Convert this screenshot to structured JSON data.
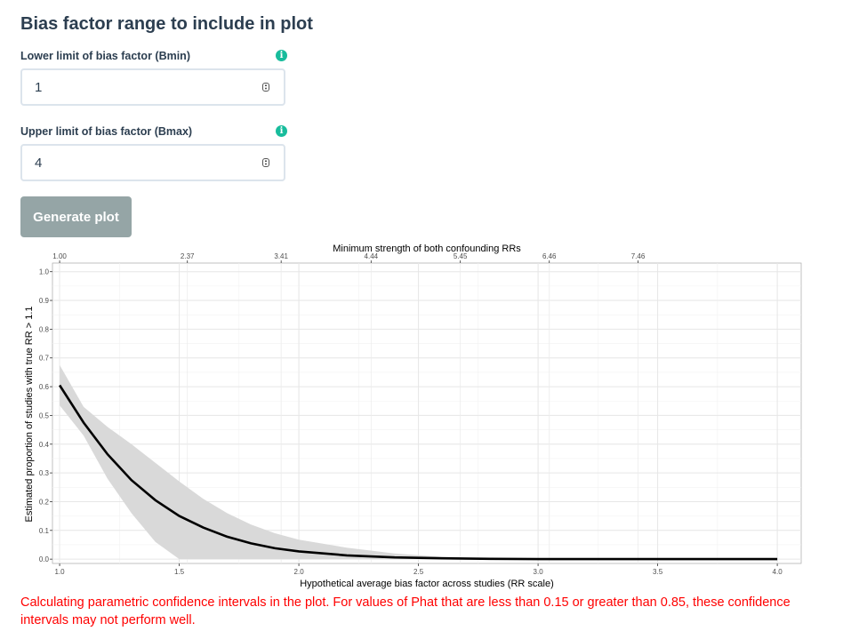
{
  "header": {
    "title": "Bias factor range to include in plot"
  },
  "bmin": {
    "label": "Lower limit of bias factor (Bmin)",
    "value": "1",
    "info_icon": "info-icon"
  },
  "bmax": {
    "label": "Upper limit of bias factor (Bmax)",
    "value": "4",
    "info_icon": "info-icon"
  },
  "generate_button": {
    "label": "Generate plot"
  },
  "colors": {
    "accent": "#18bc9c",
    "button": "#95a5a6",
    "warning": "#ff0000",
    "band": "#d9d9d9"
  },
  "warning_text": "Calculating parametric confidence intervals in the plot. For values of Phat that are less than 0.15 or greater than 0.85, these confidence intervals may not perform well.",
  "chart_data": {
    "type": "line",
    "title": "",
    "xlabel": "Hypothetical average bias factor across studies (RR scale)",
    "ylabel": "Estimated proportion of studies with true RR > 1.1",
    "top_axis_label": "Minimum strength of both confounding RRs",
    "xlim": [
      0.97,
      4.1
    ],
    "ylim": [
      -0.015,
      1.03
    ],
    "x_ticks": [
      1.0,
      1.5,
      2.0,
      2.5,
      3.0,
      3.5,
      4.0
    ],
    "x_tick_labels": [
      "1.0",
      "1.5",
      "2.0",
      "2.5",
      "3.0",
      "3.5",
      "4.0"
    ],
    "y_ticks": [
      0.0,
      0.1,
      0.2,
      0.3,
      0.4,
      0.5,
      0.6,
      0.7,
      0.8,
      0.9,
      1.0
    ],
    "y_tick_labels": [
      "0.0",
      "0.1",
      "0.2",
      "0.3",
      "0.4",
      "0.5",
      "0.6",
      "0.7",
      "0.8",
      "0.9",
      "1.0"
    ],
    "top_ticks": [
      1.0,
      1.534,
      1.926,
      2.302,
      2.675,
      3.047,
      3.418
    ],
    "top_tick_labels": [
      "1.00",
      "2.37",
      "3.41",
      "4.44",
      "5.45",
      "6.46",
      "7.46"
    ],
    "grid": true,
    "series": [
      {
        "x": [
          1.0,
          1.1,
          1.2,
          1.3,
          1.4,
          1.5,
          1.6,
          1.7,
          1.8,
          1.9,
          2.0,
          2.2,
          2.4,
          2.6,
          2.8,
          3.0,
          3.5,
          4.0
        ],
        "y": [
          0.605,
          0.475,
          0.365,
          0.275,
          0.205,
          0.15,
          0.11,
          0.078,
          0.055,
          0.038,
          0.027,
          0.013,
          0.006,
          0.003,
          0.001,
          0.0,
          0.0,
          0.0
        ],
        "upper": [
          0.675,
          0.53,
          0.46,
          0.4,
          0.335,
          0.27,
          0.21,
          0.16,
          0.12,
          0.09,
          0.068,
          0.04,
          0.02,
          0.008,
          0.003,
          0.001,
          0.0,
          0.0
        ],
        "lower": [
          0.535,
          0.43,
          0.28,
          0.16,
          0.06,
          0.0,
          0.0,
          0.0,
          0.0,
          0.0,
          0.0,
          0.0,
          0.0,
          0.0,
          0.0,
          0.0,
          0.0,
          0.0
        ]
      }
    ]
  }
}
